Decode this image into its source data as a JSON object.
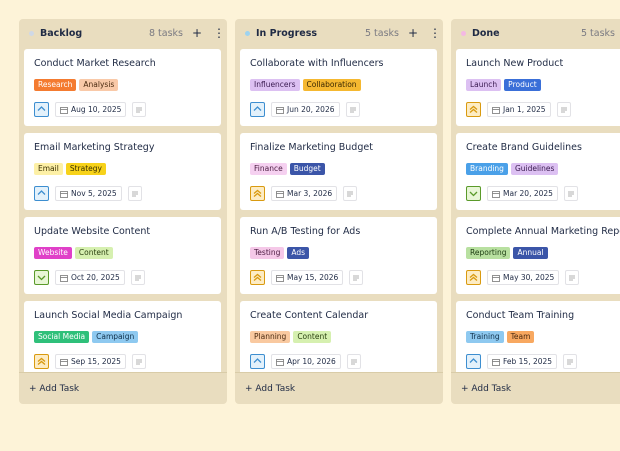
{
  "columns": [
    {
      "title": "Backlog",
      "count": "8 tasks",
      "dot_color": "#cfd8e6",
      "cards": [
        {
          "title": "Conduct Market Research",
          "tags": [
            {
              "text": "Research",
              "color": "#f47b30",
              "text_color": "#ffffff"
            },
            {
              "text": "Analysis",
              "color": "#f9c9a8",
              "text_color": "#4a2a10"
            }
          ],
          "date": "Aug 10, 2025"
        },
        {
          "title": "Email Marketing Strategy",
          "tags": [
            {
              "text": "Email",
              "color": "#fdf0a6",
              "text_color": "#3a3000"
            },
            {
              "text": "Strategy",
              "color": "#f7d21a",
              "text_color": "#3a3000"
            }
          ],
          "date": "Nov 5, 2025"
        },
        {
          "title": "Update Website Content",
          "tags": [
            {
              "text": "Website",
              "color": "#e040c8",
              "text_color": "#ffffff"
            },
            {
              "text": "Content",
              "color": "#d6f0b0",
              "text_color": "#2a4010"
            }
          ],
          "date": "Oct 20, 2025"
        },
        {
          "title": "Launch Social Media Campaign",
          "tags": [
            {
              "text": "Social Media",
              "color": "#2fc07a",
              "text_color": "#ffffff"
            },
            {
              "text": "Campaign",
              "color": "#8ec9f0",
              "text_color": "#10304a"
            }
          ],
          "date": "Sep 15, 2025"
        }
      ]
    },
    {
      "title": "In Progress",
      "count": "5 tasks",
      "dot_color": "#9ed3f0",
      "cards": [
        {
          "title": "Collaborate with Influencers",
          "tags": [
            {
              "text": "Influencers",
              "color": "#dcc0f2",
              "text_color": "#3a1a50"
            },
            {
              "text": "Collaboration",
              "color": "#f5b830",
              "text_color": "#3a2800"
            }
          ],
          "date": "Jun 20, 2026"
        },
        {
          "title": "Finalize Marketing Budget",
          "tags": [
            {
              "text": "Finance",
              "color": "#f5d0f0",
              "text_color": "#4a1a40"
            },
            {
              "text": "Budget",
              "color": "#3b55a8",
              "text_color": "#ffffff"
            }
          ],
          "date": "Mar 3, 2026"
        },
        {
          "title": "Run A/B Testing for Ads",
          "tags": [
            {
              "text": "Testing",
              "color": "#f5c8e8",
              "text_color": "#4a1a40"
            },
            {
              "text": "Ads",
              "color": "#3b55a8",
              "text_color": "#ffffff"
            }
          ],
          "date": "May 15, 2026"
        },
        {
          "title": "Create Content Calendar",
          "tags": [
            {
              "text": "Planning",
              "color": "#f9c9a0",
              "text_color": "#4a2a10"
            },
            {
              "text": "Content",
              "color": "#d6f0b0",
              "text_color": "#2a4010"
            }
          ],
          "date": "Apr 10, 2026"
        }
      ]
    },
    {
      "title": "Done",
      "count": "5 tasks",
      "dot_color": "#f4b8e4",
      "cards": [
        {
          "title": "Launch New Product",
          "tags": [
            {
              "text": "Launch",
              "color": "#dcc0f2",
              "text_color": "#3a1a50"
            },
            {
              "text": "Product",
              "color": "#3a6fd8",
              "text_color": "#ffffff"
            }
          ],
          "date": "Jan 1, 2025"
        },
        {
          "title": "Create Brand Guidelines",
          "tags": [
            {
              "text": "Branding",
              "color": "#4aa0e8",
              "text_color": "#ffffff"
            },
            {
              "text": "Guidelines",
              "color": "#dcc0f2",
              "text_color": "#3a1a50"
            }
          ],
          "date": "Mar 20, 2025"
        },
        {
          "title": "Complete Annual Marketing Report",
          "tags": [
            {
              "text": "Reporting",
              "color": "#b8e0a0",
              "text_color": "#1a3a10"
            },
            {
              "text": "Annual",
              "color": "#3b55a8",
              "text_color": "#ffffff"
            }
          ],
          "date": "May 30, 2025"
        },
        {
          "title": "Conduct Team Training",
          "tags": [
            {
              "text": "Training",
              "color": "#8ec9f0",
              "text_color": "#10304a"
            },
            {
              "text": "Team",
              "color": "#f8a860",
              "text_color": "#4a2a10"
            }
          ],
          "date": "Feb 15, 2025"
        }
      ]
    }
  ],
  "add_task": "+ Add Task"
}
